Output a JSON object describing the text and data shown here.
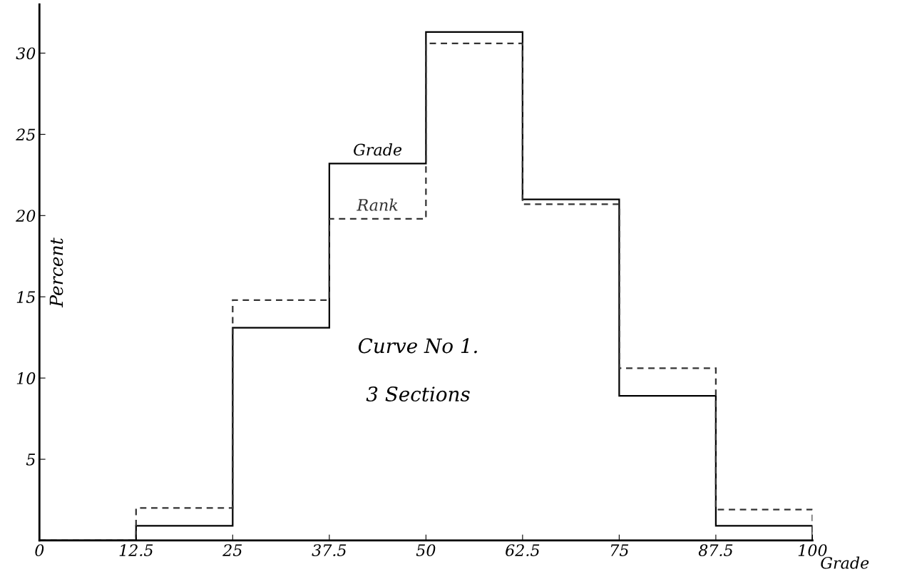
{
  "chart_data": {
    "type": "histogram",
    "xlabel": "Grade",
    "ylabel": "Percent",
    "bins": [
      0,
      12.5,
      25,
      37.5,
      50,
      62.5,
      75,
      87.5,
      100
    ],
    "series": [
      {
        "name": "Grade",
        "color": "#000000",
        "line_style": "solid",
        "values": [
          0,
          0.9,
          13.1,
          23.2,
          31.3,
          21.0,
          8.9,
          0.9
        ]
      },
      {
        "name": "Rank",
        "color": "#333333",
        "line_style": "dashed",
        "values": [
          0,
          2.0,
          14.8,
          19.8,
          30.6,
          20.7,
          10.6,
          1.9
        ]
      }
    ],
    "annotations": [
      "Curve No 1.",
      "3 Sections"
    ],
    "xlim": [
      0,
      100
    ],
    "xticks": [
      0,
      12.5,
      25,
      37.5,
      50,
      62.5,
      75,
      87.5,
      100
    ],
    "ylim": [
      0,
      33
    ],
    "yticks": [
      5,
      10,
      15,
      20,
      25,
      30
    ],
    "grid": false,
    "legend": false
  }
}
